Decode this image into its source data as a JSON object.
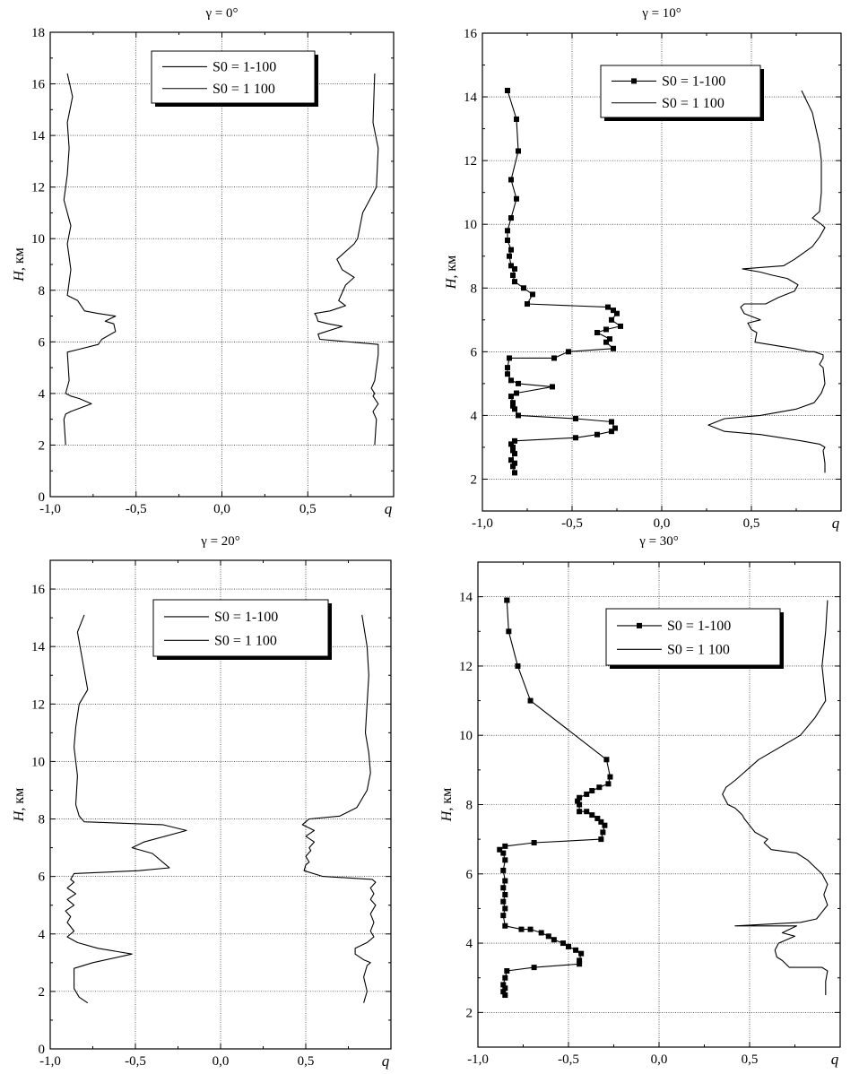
{
  "chart_data": [
    {
      "type": "line",
      "title": "γ = 0°",
      "xlabel": "q",
      "ylabel": "H, км",
      "xlim": [
        -1.0,
        1.0
      ],
      "ylim": [
        0,
        18
      ],
      "xticks": [
        "-1,0",
        "-0,5",
        "0,0",
        "0,5"
      ],
      "yticks": [
        "0",
        "2",
        "4",
        "6",
        "8",
        "10",
        "12",
        "14",
        "16",
        "18"
      ],
      "grid": true,
      "legend_position": "top-center",
      "series": [
        {
          "name": "S0 = 1-100",
          "marker": "none",
          "x": [
            -0.91,
            -0.92,
            -0.91,
            -0.88,
            -0.76,
            -0.83,
            -0.88,
            -0.91,
            -0.89,
            -0.9,
            -0.84,
            -0.72,
            -0.7,
            -0.62,
            -0.63,
            -0.68,
            -0.62,
            -0.72,
            -0.8,
            -0.84,
            -0.9,
            -0.88,
            -0.9,
            -0.88,
            -0.92,
            -0.9,
            -0.89,
            -0.9,
            -0.87,
            -0.9
          ],
          "y": [
            2.0,
            3.0,
            3.2,
            3.3,
            3.6,
            3.8,
            3.9,
            4.0,
            4.5,
            5.6,
            5.7,
            5.9,
            6.1,
            6.4,
            6.7,
            6.8,
            7.0,
            7.1,
            7.2,
            7.6,
            7.8,
            8.8,
            9.8,
            10.5,
            11.5,
            12.5,
            13.5,
            14.5,
            15.5,
            16.4
          ]
        },
        {
          "name": "S0 = 1 100",
          "marker": "none",
          "x": [
            0.89,
            0.9,
            0.88,
            0.91,
            0.88,
            0.89,
            0.87,
            0.89,
            0.91,
            0.91,
            0.57,
            0.56,
            0.7,
            0.62,
            0.56,
            0.55,
            0.54,
            0.63,
            0.72,
            0.68,
            0.72,
            0.77,
            0.7,
            0.67,
            0.77,
            0.79,
            0.82,
            0.9,
            0.91,
            0.88,
            0.89
          ],
          "y": [
            2.0,
            3.0,
            3.3,
            3.6,
            3.9,
            4.0,
            4.2,
            4.5,
            5.5,
            5.9,
            6.1,
            6.3,
            6.6,
            6.7,
            6.8,
            7.0,
            7.1,
            7.2,
            7.4,
            7.6,
            8.2,
            8.5,
            8.8,
            9.2,
            9.8,
            10.0,
            11.0,
            12.0,
            13.5,
            14.5,
            16.4
          ]
        }
      ]
    },
    {
      "type": "line",
      "title": "γ = 10°",
      "xlabel": "q",
      "ylabel": "H, км",
      "xlim": [
        -1.0,
        1.0
      ],
      "ylim": [
        1,
        16
      ],
      "xticks": [
        "-1,0",
        "-0,5",
        "0,0",
        "0,5"
      ],
      "yticks": [
        "2",
        "4",
        "6",
        "8",
        "10",
        "12",
        "14",
        "16"
      ],
      "grid": true,
      "legend_position": "top-center",
      "series": [
        {
          "name": "S0 = 1-100",
          "marker": "square",
          "x": [
            -0.82,
            -0.83,
            -0.82,
            -0.84,
            -0.82,
            -0.83,
            -0.83,
            -0.84,
            -0.82,
            -0.48,
            -0.36,
            -0.28,
            -0.26,
            -0.28,
            -0.48,
            -0.8,
            -0.82,
            -0.83,
            -0.83,
            -0.84,
            -0.81,
            -0.61,
            -0.8,
            -0.84,
            -0.86,
            -0.86,
            -0.85,
            -0.6,
            -0.52,
            -0.27,
            -0.31,
            -0.29,
            -0.36,
            -0.31,
            -0.23,
            -0.28,
            -0.25,
            -0.27,
            -0.3,
            -0.75,
            -0.72,
            -0.77,
            -0.82,
            -0.83,
            -0.82,
            -0.84,
            -0.85,
            -0.84,
            -0.86,
            -0.86,
            -0.84,
            -0.81,
            -0.84,
            -0.8,
            -0.81,
            -0.86,
            -0.86
          ],
          "y": [
            2.2,
            2.4,
            2.5,
            2.6,
            2.8,
            2.9,
            3.0,
            3.1,
            3.2,
            3.3,
            3.4,
            3.5,
            3.6,
            3.8,
            3.9,
            4.0,
            4.2,
            4.3,
            4.4,
            4.6,
            4.7,
            4.9,
            5.0,
            5.1,
            5.3,
            5.5,
            5.8,
            5.8,
            6.0,
            6.1,
            6.3,
            6.4,
            6.6,
            6.7,
            6.8,
            7.0,
            7.2,
            7.3,
            7.4,
            7.5,
            7.8,
            8.0,
            8.2,
            8.4,
            8.6,
            8.7,
            9.0,
            9.2,
            9.5,
            9.8,
            10.2,
            10.8,
            11.4,
            12.3,
            13.3,
            14.2,
            14.2
          ]
        },
        {
          "name": "S0 = 1 100",
          "marker": "none",
          "x": [
            0.91,
            0.91,
            0.9,
            0.91,
            0.88,
            0.78,
            0.55,
            0.35,
            0.26,
            0.35,
            0.55,
            0.75,
            0.85,
            0.89,
            0.91,
            0.9,
            0.88,
            0.9,
            0.9,
            0.85,
            0.82,
            0.74,
            0.52,
            0.53,
            0.5,
            0.48,
            0.55,
            0.46,
            0.44,
            0.46,
            0.58,
            0.65,
            0.74,
            0.76,
            0.7,
            0.62,
            0.55,
            0.45,
            0.68,
            0.74,
            0.84,
            0.88,
            0.91,
            0.89,
            0.84,
            0.88,
            0.89,
            0.89,
            0.88,
            0.84,
            0.78
          ],
          "y": [
            2.2,
            2.5,
            2.9,
            3.0,
            3.1,
            3.2,
            3.4,
            3.5,
            3.7,
            3.9,
            4.0,
            4.2,
            4.4,
            4.7,
            5.0,
            5.5,
            5.6,
            5.8,
            5.9,
            6.0,
            6.0,
            6.1,
            6.3,
            6.6,
            6.7,
            6.9,
            7.0,
            7.2,
            7.4,
            7.5,
            7.5,
            7.7,
            7.9,
            8.1,
            8.3,
            8.4,
            8.5,
            8.6,
            8.7,
            8.9,
            9.3,
            9.6,
            9.9,
            10.0,
            10.2,
            10.4,
            11.0,
            12.0,
            12.5,
            13.5,
            14.2
          ]
        }
      ]
    },
    {
      "type": "line",
      "title": "γ = 20°",
      "xlabel": "q",
      "ylabel": "H, км",
      "xlim": [
        -1.0,
        1.0
      ],
      "ylim": [
        0,
        17
      ],
      "xticks": [
        "-1,0",
        "-0,5",
        "0,0",
        "0,5"
      ],
      "yticks": [
        "0",
        "2",
        "4",
        "6",
        "8",
        "10",
        "12",
        "14",
        "16"
      ],
      "grid": true,
      "legend_position": "top-center",
      "series": [
        {
          "name": "S0 = 1-100",
          "marker": "none",
          "x": [
            -0.78,
            -0.83,
            -0.86,
            -0.86,
            -0.75,
            -0.52,
            -0.62,
            -0.72,
            -0.84,
            -0.9,
            -0.86,
            -0.9,
            -0.88,
            -0.91,
            -0.86,
            -0.9,
            -0.85,
            -0.9,
            -0.86,
            -0.88,
            -0.87,
            -0.86,
            -0.48,
            -0.3,
            -0.32,
            -0.4,
            -0.52,
            -0.45,
            -0.2,
            -0.34,
            -0.8,
            -0.83,
            -0.85,
            -0.84,
            -0.86,
            -0.85,
            -0.83,
            -0.78,
            -0.81,
            -0.84,
            -0.8
          ],
          "y": [
            1.6,
            1.8,
            2.1,
            2.8,
            3.0,
            3.3,
            3.4,
            3.5,
            3.7,
            3.9,
            4.1,
            4.4,
            4.6,
            4.8,
            5.0,
            5.2,
            5.4,
            5.6,
            5.8,
            5.9,
            6.0,
            6.1,
            6.2,
            6.3,
            6.4,
            6.8,
            7.0,
            7.2,
            7.6,
            7.8,
            7.9,
            8.1,
            8.5,
            9.5,
            10.5,
            11.2,
            12.0,
            12.5,
            13.5,
            14.5,
            15.1
          ]
        },
        {
          "name": "S0 = 1 100",
          "marker": "none",
          "x": [
            0.84,
            0.86,
            0.84,
            0.86,
            0.88,
            0.84,
            0.79,
            0.79,
            0.86,
            0.9,
            0.88,
            0.9,
            0.88,
            0.91,
            0.88,
            0.9,
            0.88,
            0.91,
            0.89,
            0.6,
            0.49,
            0.5,
            0.52,
            0.5,
            0.53,
            0.52,
            0.55,
            0.5,
            0.55,
            0.48,
            0.5,
            0.52,
            0.7,
            0.8,
            0.86,
            0.88,
            0.87,
            0.85,
            0.86,
            0.87,
            0.86,
            0.83
          ],
          "y": [
            1.6,
            2.0,
            2.5,
            2.9,
            3.0,
            3.1,
            3.3,
            3.5,
            3.7,
            3.9,
            4.1,
            4.4,
            4.7,
            5.0,
            5.2,
            5.4,
            5.6,
            5.8,
            5.9,
            6.0,
            6.2,
            6.4,
            6.5,
            6.7,
            6.9,
            7.0,
            7.2,
            7.4,
            7.6,
            7.8,
            7.9,
            8.0,
            8.1,
            8.4,
            9.0,
            9.6,
            10.3,
            11.0,
            12.0,
            13.0,
            14.0,
            15.1
          ]
        }
      ]
    },
    {
      "type": "line",
      "title": "γ = 30°",
      "xlabel": "q",
      "ylabel": "H, км",
      "xlim": [
        -1.0,
        1.0
      ],
      "ylim": [
        1,
        15
      ],
      "xticks": [
        "-1,0",
        "-0,5",
        "0,0",
        "0,5"
      ],
      "yticks": [
        "2",
        "4",
        "6",
        "8",
        "10",
        "12",
        "14"
      ],
      "grid": true,
      "legend_position": "top-center",
      "series": [
        {
          "name": "S0 = 1-100",
          "marker": "square",
          "x": [
            -0.85,
            -0.86,
            -0.85,
            -0.86,
            -0.85,
            -0.84,
            -0.69,
            -0.44,
            -0.44,
            -0.43,
            -0.46,
            -0.5,
            -0.53,
            -0.58,
            -0.61,
            -0.65,
            -0.71,
            -0.76,
            -0.85,
            -0.86,
            -0.85,
            -0.86,
            -0.85,
            -0.86,
            -0.85,
            -0.86,
            -0.85,
            -0.86,
            -0.88,
            -0.85,
            -0.69,
            -0.32,
            -0.31,
            -0.3,
            -0.32,
            -0.34,
            -0.37,
            -0.4,
            -0.44,
            -0.44,
            -0.45,
            -0.44,
            -0.4,
            -0.37,
            -0.33,
            -0.28,
            -0.27,
            -0.29,
            -0.71,
            -0.78,
            -0.83,
            -0.84,
            -0.84
          ],
          "y": [
            2.5,
            2.6,
            2.7,
            2.8,
            3.0,
            3.2,
            3.3,
            3.4,
            3.5,
            3.7,
            3.8,
            3.9,
            4.0,
            4.1,
            4.2,
            4.3,
            4.4,
            4.4,
            4.5,
            4.8,
            5.0,
            5.2,
            5.4,
            5.6,
            5.8,
            6.1,
            6.4,
            6.6,
            6.7,
            6.8,
            6.9,
            7.0,
            7.2,
            7.4,
            7.5,
            7.6,
            7.7,
            7.8,
            7.8,
            8.0,
            8.1,
            8.2,
            8.3,
            8.4,
            8.5,
            8.6,
            8.8,
            9.3,
            11.0,
            12.0,
            13.0,
            13.9,
            13.9
          ]
        },
        {
          "name": "S0 = 1 100",
          "marker": "none",
          "x": [
            0.92,
            0.92,
            0.93,
            0.9,
            0.86,
            0.72,
            0.68,
            0.65,
            0.64,
            0.66,
            0.75,
            0.68,
            0.76,
            0.42,
            0.78,
            0.87,
            0.9,
            0.93,
            0.91,
            0.93,
            0.9,
            0.86,
            0.82,
            0.76,
            0.62,
            0.58,
            0.6,
            0.53,
            0.5,
            0.47,
            0.46,
            0.44,
            0.42,
            0.38,
            0.35,
            0.37,
            0.42,
            0.55,
            0.78,
            0.86,
            0.92,
            0.9,
            0.92,
            0.93
          ],
          "y": [
            2.5,
            2.9,
            3.2,
            3.3,
            3.3,
            3.3,
            3.5,
            3.6,
            3.8,
            4.0,
            4.2,
            4.3,
            4.5,
            4.5,
            4.6,
            4.7,
            4.9,
            5.1,
            5.4,
            5.7,
            6.0,
            6.2,
            6.4,
            6.6,
            6.7,
            6.9,
            7.0,
            7.2,
            7.4,
            7.6,
            7.7,
            7.8,
            7.9,
            8.0,
            8.3,
            8.5,
            8.7,
            9.3,
            10.0,
            10.5,
            11.0,
            12.0,
            13.0,
            13.9
          ]
        }
      ]
    }
  ]
}
